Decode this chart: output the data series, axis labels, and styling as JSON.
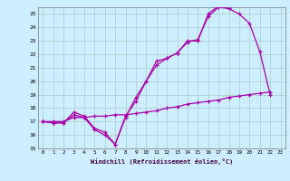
{
  "bg_color": "#cceeff",
  "grid_color": "#aacccc",
  "line_color": "#aa00aa",
  "xlim": [
    -0.5,
    23.5
  ],
  "ylim": [
    15,
    25.5
  ],
  "yticks": [
    15,
    16,
    17,
    18,
    19,
    20,
    21,
    22,
    23,
    24,
    25
  ],
  "xticks": [
    0,
    1,
    2,
    3,
    4,
    5,
    6,
    7,
    8,
    9,
    10,
    11,
    12,
    13,
    14,
    15,
    16,
    17,
    18,
    19,
    20,
    21,
    22,
    23
  ],
  "xlabel": "Windchill (Refroidissement éolien,°C)",
  "line1_x": [
    0,
    1,
    2,
    3,
    4,
    5,
    6,
    7,
    8,
    9,
    10,
    11,
    12,
    13,
    14,
    15,
    16,
    17,
    18,
    19,
    20,
    21,
    22
  ],
  "line1_y": [
    17.0,
    16.9,
    16.9,
    17.7,
    17.4,
    16.5,
    16.2,
    15.3,
    17.4,
    18.5,
    20.0,
    21.5,
    21.7,
    22.1,
    22.9,
    23.1,
    24.8,
    25.5,
    25.4,
    25.0,
    24.3,
    22.2,
    19.0
  ],
  "line2_x": [
    0,
    1,
    2,
    3,
    4,
    5,
    6,
    7,
    8,
    9,
    10,
    11,
    12,
    13,
    14,
    15,
    16,
    17,
    18
  ],
  "line2_y": [
    17.0,
    16.9,
    16.9,
    17.5,
    17.3,
    16.4,
    16.0,
    15.3,
    17.3,
    18.8,
    20.0,
    21.2,
    21.7,
    22.1,
    23.0,
    23.0,
    25.0,
    25.6,
    25.4
  ],
  "line3_x": [
    0,
    1,
    2,
    3,
    4,
    5,
    6,
    7,
    8,
    9,
    10,
    11,
    12,
    13,
    14,
    15,
    16,
    17,
    18,
    19,
    20,
    21,
    22
  ],
  "line3_y": [
    17.0,
    17.0,
    17.0,
    17.3,
    17.3,
    17.4,
    17.4,
    17.5,
    17.5,
    17.6,
    17.7,
    17.8,
    18.0,
    18.1,
    18.3,
    18.4,
    18.5,
    18.6,
    18.8,
    18.9,
    19.0,
    19.1,
    19.2
  ]
}
